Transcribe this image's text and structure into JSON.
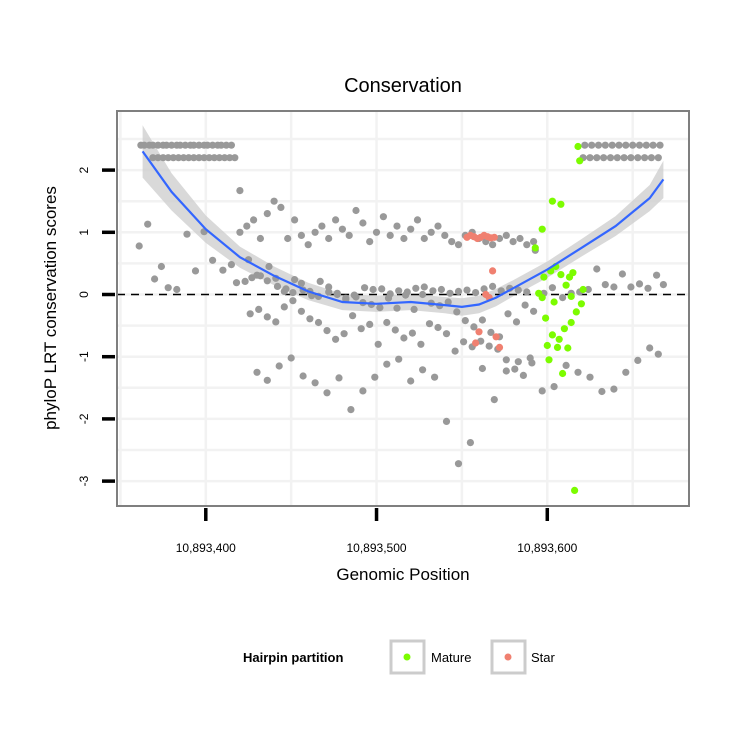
{
  "chart_data": {
    "type": "scatter",
    "title": "Conservation",
    "xlabel": "Genomic Position",
    "ylabel": "phyloP LRT conservation scores",
    "xlim": [
      10893348,
      10893683
    ],
    "ylim": [
      -3.4,
      2.95
    ],
    "x_ticks": [
      {
        "value": 10893400,
        "label": "10,893,400"
      },
      {
        "value": 10893500,
        "label": "10,893,500"
      },
      {
        "value": 10893600,
        "label": "10,893,600"
      }
    ],
    "y_ticks": [
      {
        "value": 2,
        "label": "2"
      },
      {
        "value": 1,
        "label": "1"
      },
      {
        "value": 0,
        "label": "0"
      },
      {
        "value": -1,
        "label": "-1"
      },
      {
        "value": -2,
        "label": "-2"
      },
      {
        "value": -3,
        "label": "-3"
      }
    ],
    "reference_line": {
      "y": 0,
      "style": "dashed"
    },
    "colors": {
      "other": "#999999",
      "mature": "#7cfc00",
      "star": "#f08070",
      "smooth_line": "#3366ff",
      "smooth_band": "#cccccc",
      "panel_border": "#7f7f7f",
      "grid": "#f2f2f2"
    },
    "legend": {
      "title": "Hairpin partition",
      "position": "bottom",
      "entries": [
        {
          "label": "Mature",
          "series": "mature"
        },
        {
          "label": "Star",
          "series": "star"
        }
      ]
    },
    "smooth": {
      "method": "loess",
      "x": [
        10893363,
        10893380,
        10893400,
        10893420,
        10893440,
        10893460,
        10893480,
        10893500,
        10893520,
        10893540,
        10893550,
        10893560,
        10893570,
        10893580,
        10893600,
        10893620,
        10893640,
        10893660,
        10893668
      ],
      "y": [
        2.3,
        1.65,
        1.05,
        0.6,
        0.3,
        0.05,
        -0.12,
        -0.15,
        -0.12,
        -0.17,
        -0.2,
        -0.16,
        -0.05,
        0.1,
        0.4,
        0.75,
        1.1,
        1.55,
        1.85
      ],
      "ci_halfwidth": [
        0.42,
        0.3,
        0.22,
        0.17,
        0.15,
        0.14,
        0.13,
        0.13,
        0.13,
        0.13,
        0.14,
        0.14,
        0.14,
        0.13,
        0.13,
        0.14,
        0.16,
        0.21,
        0.3
      ]
    },
    "series": [
      {
        "name": "Other",
        "key": "other",
        "x": [
          10893362,
          10893364,
          10893367,
          10893369,
          10893372,
          10893375,
          10893377,
          10893380,
          10893383,
          10893385,
          10893388,
          10893391,
          10893393,
          10893396,
          10893399,
          10893401,
          10893404,
          10893407,
          10893409,
          10893412,
          10893415,
          10893369,
          10893372,
          10893375,
          10893378,
          10893381,
          10893384,
          10893387,
          10893390,
          10893393,
          10893396,
          10893399,
          10893402,
          10893405,
          10893408,
          10893411,
          10893414,
          10893417,
          10893361,
          10893366,
          10893370,
          10893374,
          10893378,
          10893383,
          10893389,
          10893394,
          10893399,
          10893404,
          10893410,
          10893415,
          10893420,
          10893425,
          10893430,
          10893436,
          10893441,
          10893446,
          10893451,
          10893456,
          10893461,
          10893466,
          10893472,
          10893477,
          10893482,
          10893488,
          10893493,
          10893498,
          10893503,
          10893508,
          10893513,
          10893518,
          10893523,
          10893528,
          10893533,
          10893538,
          10893543,
          10893548,
          10893553,
          10893558,
          10893563,
          10893568,
          10893573,
          10893578,
          10893583,
          10893588,
          10893593,
          10893598,
          10893603,
          10893609,
          10893614,
          10893619,
          10893624,
          10893629,
          10893634,
          10893639,
          10893644,
          10893649,
          10893654,
          10893659,
          10893664,
          10893668,
          10893418,
          10893423,
          10893427,
          10893432,
          10893437,
          10893442,
          10893447,
          10893452,
          10893457,
          10893462,
          10893467,
          10893472,
          10893477,
          10893482,
          10893487,
          10893492,
          10893497,
          10893502,
          10893507,
          10893512,
          10893517,
          10893522,
          10893527,
          10893532,
          10893537,
          10893542,
          10893547,
          10893552,
          10893557,
          10893562,
          10893567,
          10893572,
          10893577,
          10893582,
          10893587,
          10893592,
          10893426,
          10893431,
          10893436,
          10893441,
          10893446,
          10893451,
          10893456,
          10893461,
          10893466,
          10893471,
          10893476,
          10893481,
          10893486,
          10893491,
          10893496,
          10893501,
          10893506,
          10893511,
          10893516,
          10893521,
          10893526,
          10893531,
          10893536,
          10893541,
          10893546,
          10893551,
          10893556,
          10893561,
          10893566,
          10893571,
          10893576,
          10893581,
          10893586,
          10893591,
          10893622,
          10893626,
          10893630,
          10893634,
          10893638,
          10893642,
          10893646,
          10893650,
          10893654,
          10893658,
          10893662,
          10893666,
          10893621,
          10893625,
          10893629,
          10893633,
          10893637,
          10893641,
          10893645,
          10893649,
          10893653,
          10893657,
          10893661,
          10893665,
          10893430,
          10893436,
          10893443,
          10893450,
          10893457,
          10893464,
          10893471,
          10893478,
          10893485,
          10893492,
          10893499,
          10893506,
          10893513,
          10893520,
          10893527,
          10893534,
          10893541,
          10893548,
          10893555,
          10893562,
          10893569,
          10893576,
          10893583,
          10893590,
          10893597,
          10893604,
          10893611,
          10893618,
          10893625,
          10893632,
          10893639,
          10893646,
          10893653,
          10893660,
          10893665,
          10893420,
          10893424,
          10893428,
          10893432,
          10893436,
          10893440,
          10893444,
          10893448,
          10893452,
          10893456,
          10893460,
          10893464,
          10893468,
          10893472,
          10893476,
          10893480,
          10893484,
          10893488,
          10893492,
          10893496,
          10893500,
          10893504,
          10893508,
          10893512,
          10893516,
          10893520,
          10893524,
          10893528,
          10893532,
          10893536,
          10893540,
          10893544,
          10893548,
          10893552,
          10893556,
          10893560,
          10893564,
          10893568,
          10893572,
          10893576,
          10893580,
          10893584,
          10893588,
          10893592
        ],
        "y": [
          2.4,
          2.4,
          2.4,
          2.4,
          2.4,
          2.4,
          2.4,
          2.4,
          2.4,
          2.4,
          2.4,
          2.4,
          2.4,
          2.4,
          2.4,
          2.4,
          2.4,
          2.4,
          2.4,
          2.4,
          2.4,
          2.2,
          2.2,
          2.2,
          2.2,
          2.2,
          2.2,
          2.2,
          2.2,
          2.2,
          2.2,
          2.2,
          2.2,
          2.2,
          2.2,
          2.2,
          2.2,
          2.2,
          0.78,
          1.13,
          0.25,
          0.45,
          0.11,
          0.08,
          0.97,
          0.38,
          1.01,
          0.55,
          0.39,
          0.48,
          1.67,
          0.56,
          0.31,
          0.22,
          0.26,
          0.05,
          0.03,
          0.18,
          0.05,
          -0.03,
          0.12,
          0.0,
          -0.06,
          -0.04,
          0.11,
          0.08,
          0.09,
          0.01,
          0.06,
          0.04,
          0.1,
          0.12,
          0.06,
          0.08,
          0.02,
          0.05,
          0.07,
          0.03,
          0.09,
          0.13,
          0.06,
          0.1,
          0.07,
          0.04,
          0.71,
          0.02,
          0.11,
          -0.05,
          0.02,
          0.04,
          0.08,
          0.41,
          0.16,
          0.12,
          0.33,
          0.12,
          0.17,
          0.1,
          0.31,
          0.16,
          0.19,
          0.21,
          0.27,
          0.3,
          0.45,
          0.13,
          0.09,
          0.24,
          0.07,
          -0.02,
          0.21,
          0.04,
          0.02,
          -0.08,
          -0.01,
          -0.13,
          -0.16,
          -0.21,
          -0.06,
          -0.22,
          -0.01,
          -0.24,
          0.0,
          -0.14,
          -0.18,
          -0.12,
          -0.28,
          -0.42,
          -0.52,
          -0.41,
          -0.61,
          -0.68,
          -0.31,
          -0.44,
          -0.17,
          -0.27,
          -0.31,
          -0.24,
          -0.36,
          -0.44,
          -0.2,
          -0.1,
          -0.27,
          -0.39,
          -0.45,
          -0.58,
          -0.72,
          -0.63,
          -0.34,
          -0.55,
          -0.48,
          -0.8,
          -0.45,
          -0.57,
          -0.7,
          -0.62,
          -0.8,
          -0.47,
          -0.53,
          -0.63,
          -0.91,
          -0.76,
          -0.84,
          -0.75,
          -0.83,
          -0.88,
          -1.05,
          -1.2,
          -1.3,
          -1.1,
          2.4,
          2.4,
          2.4,
          2.4,
          2.4,
          2.4,
          2.4,
          2.4,
          2.4,
          2.4,
          2.4,
          2.4,
          2.2,
          2.2,
          2.2,
          2.2,
          2.2,
          2.2,
          2.2,
          2.2,
          2.2,
          2.2,
          2.2,
          2.2,
          -1.25,
          -1.38,
          -1.15,
          -1.02,
          -1.31,
          -1.42,
          -1.58,
          -1.34,
          -1.85,
          -1.55,
          -1.33,
          -1.12,
          -1.04,
          -1.39,
          -1.21,
          -1.33,
          -2.04,
          -2.72,
          -2.38,
          -1.19,
          -1.69,
          -1.23,
          -1.08,
          -1.02,
          -1.55,
          -1.48,
          -1.14,
          -1.25,
          -1.33,
          -1.56,
          -1.52,
          -1.25,
          -1.06,
          -0.86,
          -0.96,
          1.0,
          1.1,
          1.2,
          0.9,
          1.3,
          1.5,
          1.4,
          0.9,
          1.2,
          0.95,
          0.8,
          1.0,
          1.1,
          0.9,
          1.2,
          1.05,
          0.95,
          1.35,
          1.15,
          0.85,
          1.0,
          1.25,
          0.95,
          1.1,
          0.9,
          1.05,
          1.2,
          0.9,
          1.0,
          1.1,
          0.95,
          0.85,
          0.8,
          0.95,
          1.0,
          0.9,
          0.85,
          0.8,
          0.9,
          0.95,
          0.85,
          0.9,
          0.8,
          0.85
        ]
      },
      {
        "name": "Mature",
        "key": "mature",
        "x": [
          10893593,
          10893595,
          10893597,
          10893598,
          10893599,
          10893600,
          10893601,
          10893602,
          10893603,
          10893604,
          10893605,
          10893606,
          10893607,
          10893608,
          10893609,
          10893610,
          10893611,
          10893612,
          10893613,
          10893614,
          10893615,
          10893616,
          10893617,
          10893618,
          10893619,
          10893620,
          10893621,
          10893597,
          10893603,
          10893608,
          10893614
        ],
        "y": [
          0.75,
          0.02,
          -0.05,
          0.28,
          -0.38,
          -0.82,
          -1.05,
          0.38,
          -0.65,
          -0.12,
          0.45,
          -0.85,
          -0.72,
          0.32,
          -1.27,
          -0.55,
          0.15,
          -0.86,
          0.28,
          -0.03,
          0.35,
          -3.15,
          -0.28,
          2.38,
          2.15,
          -0.15,
          0.08,
          1.05,
          1.5,
          1.45,
          -0.45
        ]
      },
      {
        "name": "Star",
        "key": "star",
        "x": [
          10893553,
          10893555,
          10893557,
          10893559,
          10893561,
          10893563,
          10893565,
          10893567,
          10893569,
          10893564,
          10893566,
          10893560,
          10893558,
          10893570,
          10893572,
          10893568
        ],
        "y": [
          0.92,
          0.95,
          0.93,
          0.9,
          0.92,
          0.95,
          0.93,
          0.91,
          0.92,
          0.0,
          -0.05,
          -0.6,
          -0.78,
          -0.68,
          -0.85,
          0.38
        ]
      }
    ]
  }
}
